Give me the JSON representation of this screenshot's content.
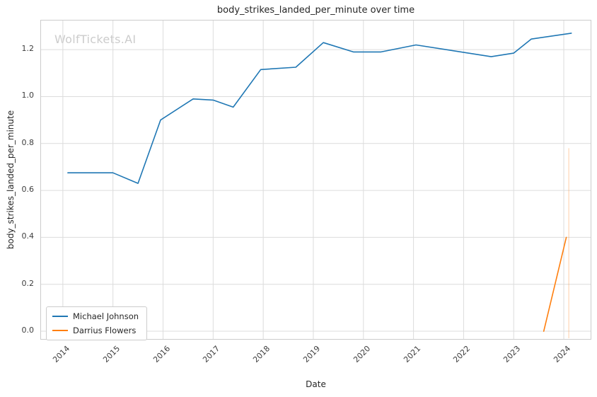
{
  "watermark": {
    "text": "WolfTickets.AI"
  },
  "chart_data": {
    "type": "line",
    "title": "body_strikes_landed_per_minute over time",
    "xlabel": "Date",
    "ylabel": "body_strikes_landed_per_minute",
    "xlim": [
      2013.55,
      2024.55
    ],
    "ylim": [
      -0.036,
      1.327
    ],
    "x_ticks": [
      2014,
      2015,
      2016,
      2017,
      2018,
      2019,
      2020,
      2021,
      2022,
      2023,
      2024
    ],
    "y_ticks": [
      0.0,
      0.2,
      0.4,
      0.6,
      0.8,
      1.0,
      1.2
    ],
    "grid": true,
    "grid_color": "#dcdcdc",
    "spine_color": "#cccccc",
    "legend_position": "lower left",
    "series": [
      {
        "name": "Michael Johnson",
        "color": "#1f77b4",
        "points": [
          [
            2014.1,
            0.675
          ],
          [
            2015.0,
            0.675
          ],
          [
            2015.5,
            0.63
          ],
          [
            2015.95,
            0.9
          ],
          [
            2016.6,
            0.99
          ],
          [
            2017.0,
            0.985
          ],
          [
            2017.4,
            0.955
          ],
          [
            2017.95,
            1.115
          ],
          [
            2018.65,
            1.125
          ],
          [
            2019.2,
            1.23
          ],
          [
            2019.8,
            1.19
          ],
          [
            2020.35,
            1.19
          ],
          [
            2021.05,
            1.22
          ],
          [
            2022.55,
            1.17
          ],
          [
            2023.0,
            1.185
          ],
          [
            2023.35,
            1.245
          ],
          [
            2024.15,
            1.27
          ]
        ]
      },
      {
        "name": "Darrius Flowers",
        "color": "#ff7f0e",
        "points": [
          [
            2023.6,
            0.0
          ],
          [
            2024.05,
            0.4
          ]
        ]
      }
    ],
    "annotations": [
      {
        "type": "vertical-line",
        "x": 2024.1,
        "y0": -0.03,
        "y1": 0.78,
        "color": "#ff7f0e",
        "opacity": 0.3
      }
    ]
  }
}
